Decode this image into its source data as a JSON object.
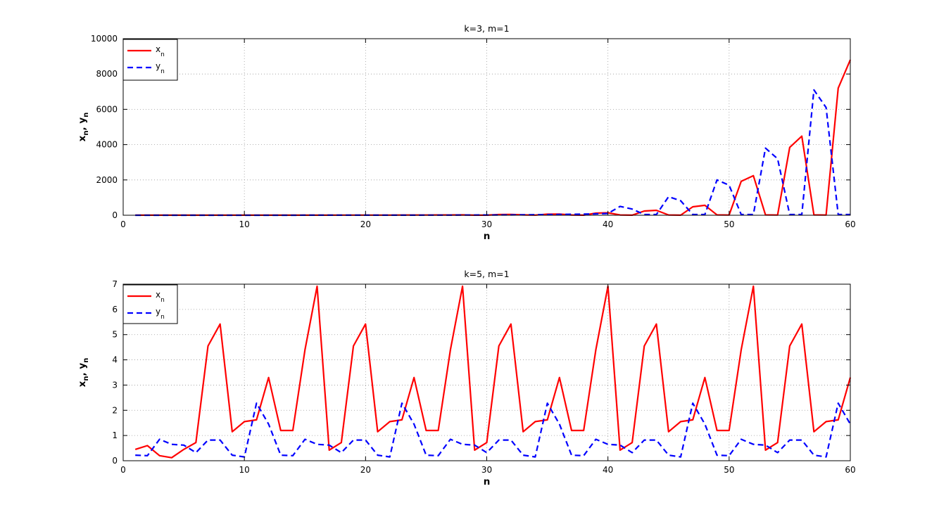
{
  "figure": {
    "background": "#ffffff"
  },
  "chart_data": [
    {
      "type": "line",
      "title": "k=3, m=1",
      "xlabel": "n",
      "ylabel": "x_n, y_n",
      "xlim": [
        0,
        60
      ],
      "ylim": [
        0,
        10000
      ],
      "xticks": [
        0,
        10,
        20,
        30,
        40,
        50,
        60
      ],
      "yticks": [
        0,
        2000,
        4000,
        6000,
        8000,
        10000
      ],
      "grid": true,
      "legend_position": "top-left",
      "x": [
        1,
        2,
        3,
        4,
        5,
        6,
        7,
        8,
        9,
        10,
        11,
        12,
        13,
        14,
        15,
        16,
        17,
        18,
        19,
        20,
        21,
        22,
        23,
        24,
        25,
        26,
        27,
        28,
        29,
        30,
        31,
        32,
        33,
        34,
        35,
        36,
        37,
        38,
        39,
        40,
        41,
        42,
        43,
        44,
        45,
        46,
        47,
        48,
        49,
        50,
        51,
        52,
        53,
        54,
        55,
        56,
        57,
        58,
        59,
        60
      ],
      "series": [
        {
          "name": "x_n",
          "label_base": "x",
          "label_sub": "n",
          "color": "#ff0000",
          "dash": "solid",
          "values": [
            2,
            2,
            2,
            2,
            2,
            2,
            2,
            2,
            3,
            3,
            3,
            3,
            4,
            4,
            4,
            5,
            5,
            6,
            6,
            7,
            8,
            9,
            10,
            11,
            13,
            15,
            17,
            19,
            5,
            5,
            40,
            45,
            20,
            8,
            60,
            65,
            15,
            5,
            120,
            140,
            15,
            5,
            240,
            280,
            15,
            5,
            480,
            560,
            20,
            10,
            1920,
            2240,
            20,
            10,
            3840,
            4480,
            20,
            10,
            7200,
            8800
          ]
        },
        {
          "name": "y_n",
          "label_base": "y",
          "label_sub": "n",
          "color": "#0000ff",
          "dash": "dashed",
          "values": [
            1,
            1,
            1,
            1,
            1,
            1,
            1,
            1,
            1,
            1,
            1,
            1,
            1,
            1,
            2,
            2,
            2,
            2,
            3,
            3,
            3,
            4,
            4,
            5,
            6,
            7,
            8,
            10,
            12,
            14,
            16,
            20,
            25,
            30,
            35,
            45,
            55,
            65,
            80,
            100,
            500,
            350,
            40,
            40,
            1050,
            820,
            40,
            40,
            2000,
            1700,
            40,
            40,
            3800,
            3200,
            40,
            40,
            7100,
            6100,
            40,
            40
          ]
        }
      ]
    },
    {
      "type": "line",
      "title": "k=5, m=1",
      "xlabel": "n",
      "ylabel": "x_n, y_n",
      "xlim": [
        0,
        60
      ],
      "ylim": [
        0,
        7
      ],
      "xticks": [
        0,
        10,
        20,
        30,
        40,
        50,
        60
      ],
      "yticks": [
        0,
        1,
        2,
        3,
        4,
        5,
        6,
        7
      ],
      "grid": true,
      "legend_position": "top-left",
      "x": [
        1,
        2,
        3,
        4,
        5,
        6,
        7,
        8,
        9,
        10,
        11,
        12,
        13,
        14,
        15,
        16,
        17,
        18,
        19,
        20,
        21,
        22,
        23,
        24,
        25,
        26,
        27,
        28,
        29,
        30,
        31,
        32,
        33,
        34,
        35,
        36,
        37,
        38,
        39,
        40,
        41,
        42,
        43,
        44,
        45,
        46,
        47,
        48,
        49,
        50,
        51,
        52,
        53,
        54,
        55,
        56,
        57,
        58,
        59,
        60
      ],
      "series": [
        {
          "name": "x_n",
          "label_base": "x",
          "label_sub": "n",
          "color": "#ff0000",
          "dash": "solid",
          "values": [
            0.45,
            0.6,
            0.2,
            0.12,
            0.45,
            0.72,
            4.55,
            5.42,
            1.15,
            1.55,
            1.62,
            3.3,
            1.2,
            1.2,
            4.4,
            6.92,
            0.42,
            0.72,
            4.55,
            5.42,
            1.15,
            1.55,
            1.62,
            3.3,
            1.2,
            1.2,
            4.4,
            6.92,
            0.42,
            0.72,
            4.55,
            5.42,
            1.15,
            1.55,
            1.62,
            3.3,
            1.2,
            1.2,
            4.4,
            6.92,
            0.42,
            0.72,
            4.55,
            5.42,
            1.15,
            1.55,
            1.62,
            3.3,
            1.2,
            1.2,
            4.4,
            6.92,
            0.42,
            0.72,
            4.55,
            5.42,
            1.15,
            1.55,
            1.62,
            3.3
          ]
        },
        {
          "name": "y_n",
          "label_base": "y",
          "label_sub": "n",
          "color": "#0000ff",
          "dash": "dashed",
          "values": [
            0.22,
            0.2,
            0.85,
            0.65,
            0.62,
            0.32,
            0.82,
            0.82,
            0.22,
            0.15,
            2.28,
            1.45,
            0.22,
            0.2,
            0.85,
            0.65,
            0.62,
            0.32,
            0.82,
            0.82,
            0.22,
            0.15,
            2.28,
            1.45,
            0.22,
            0.2,
            0.85,
            0.65,
            0.62,
            0.32,
            0.82,
            0.82,
            0.22,
            0.15,
            2.28,
            1.45,
            0.22,
            0.2,
            0.85,
            0.65,
            0.62,
            0.32,
            0.82,
            0.82,
            0.22,
            0.15,
            2.28,
            1.45,
            0.22,
            0.2,
            0.85,
            0.65,
            0.62,
            0.32,
            0.82,
            0.82,
            0.22,
            0.15,
            2.28,
            1.45
          ]
        }
      ]
    }
  ]
}
